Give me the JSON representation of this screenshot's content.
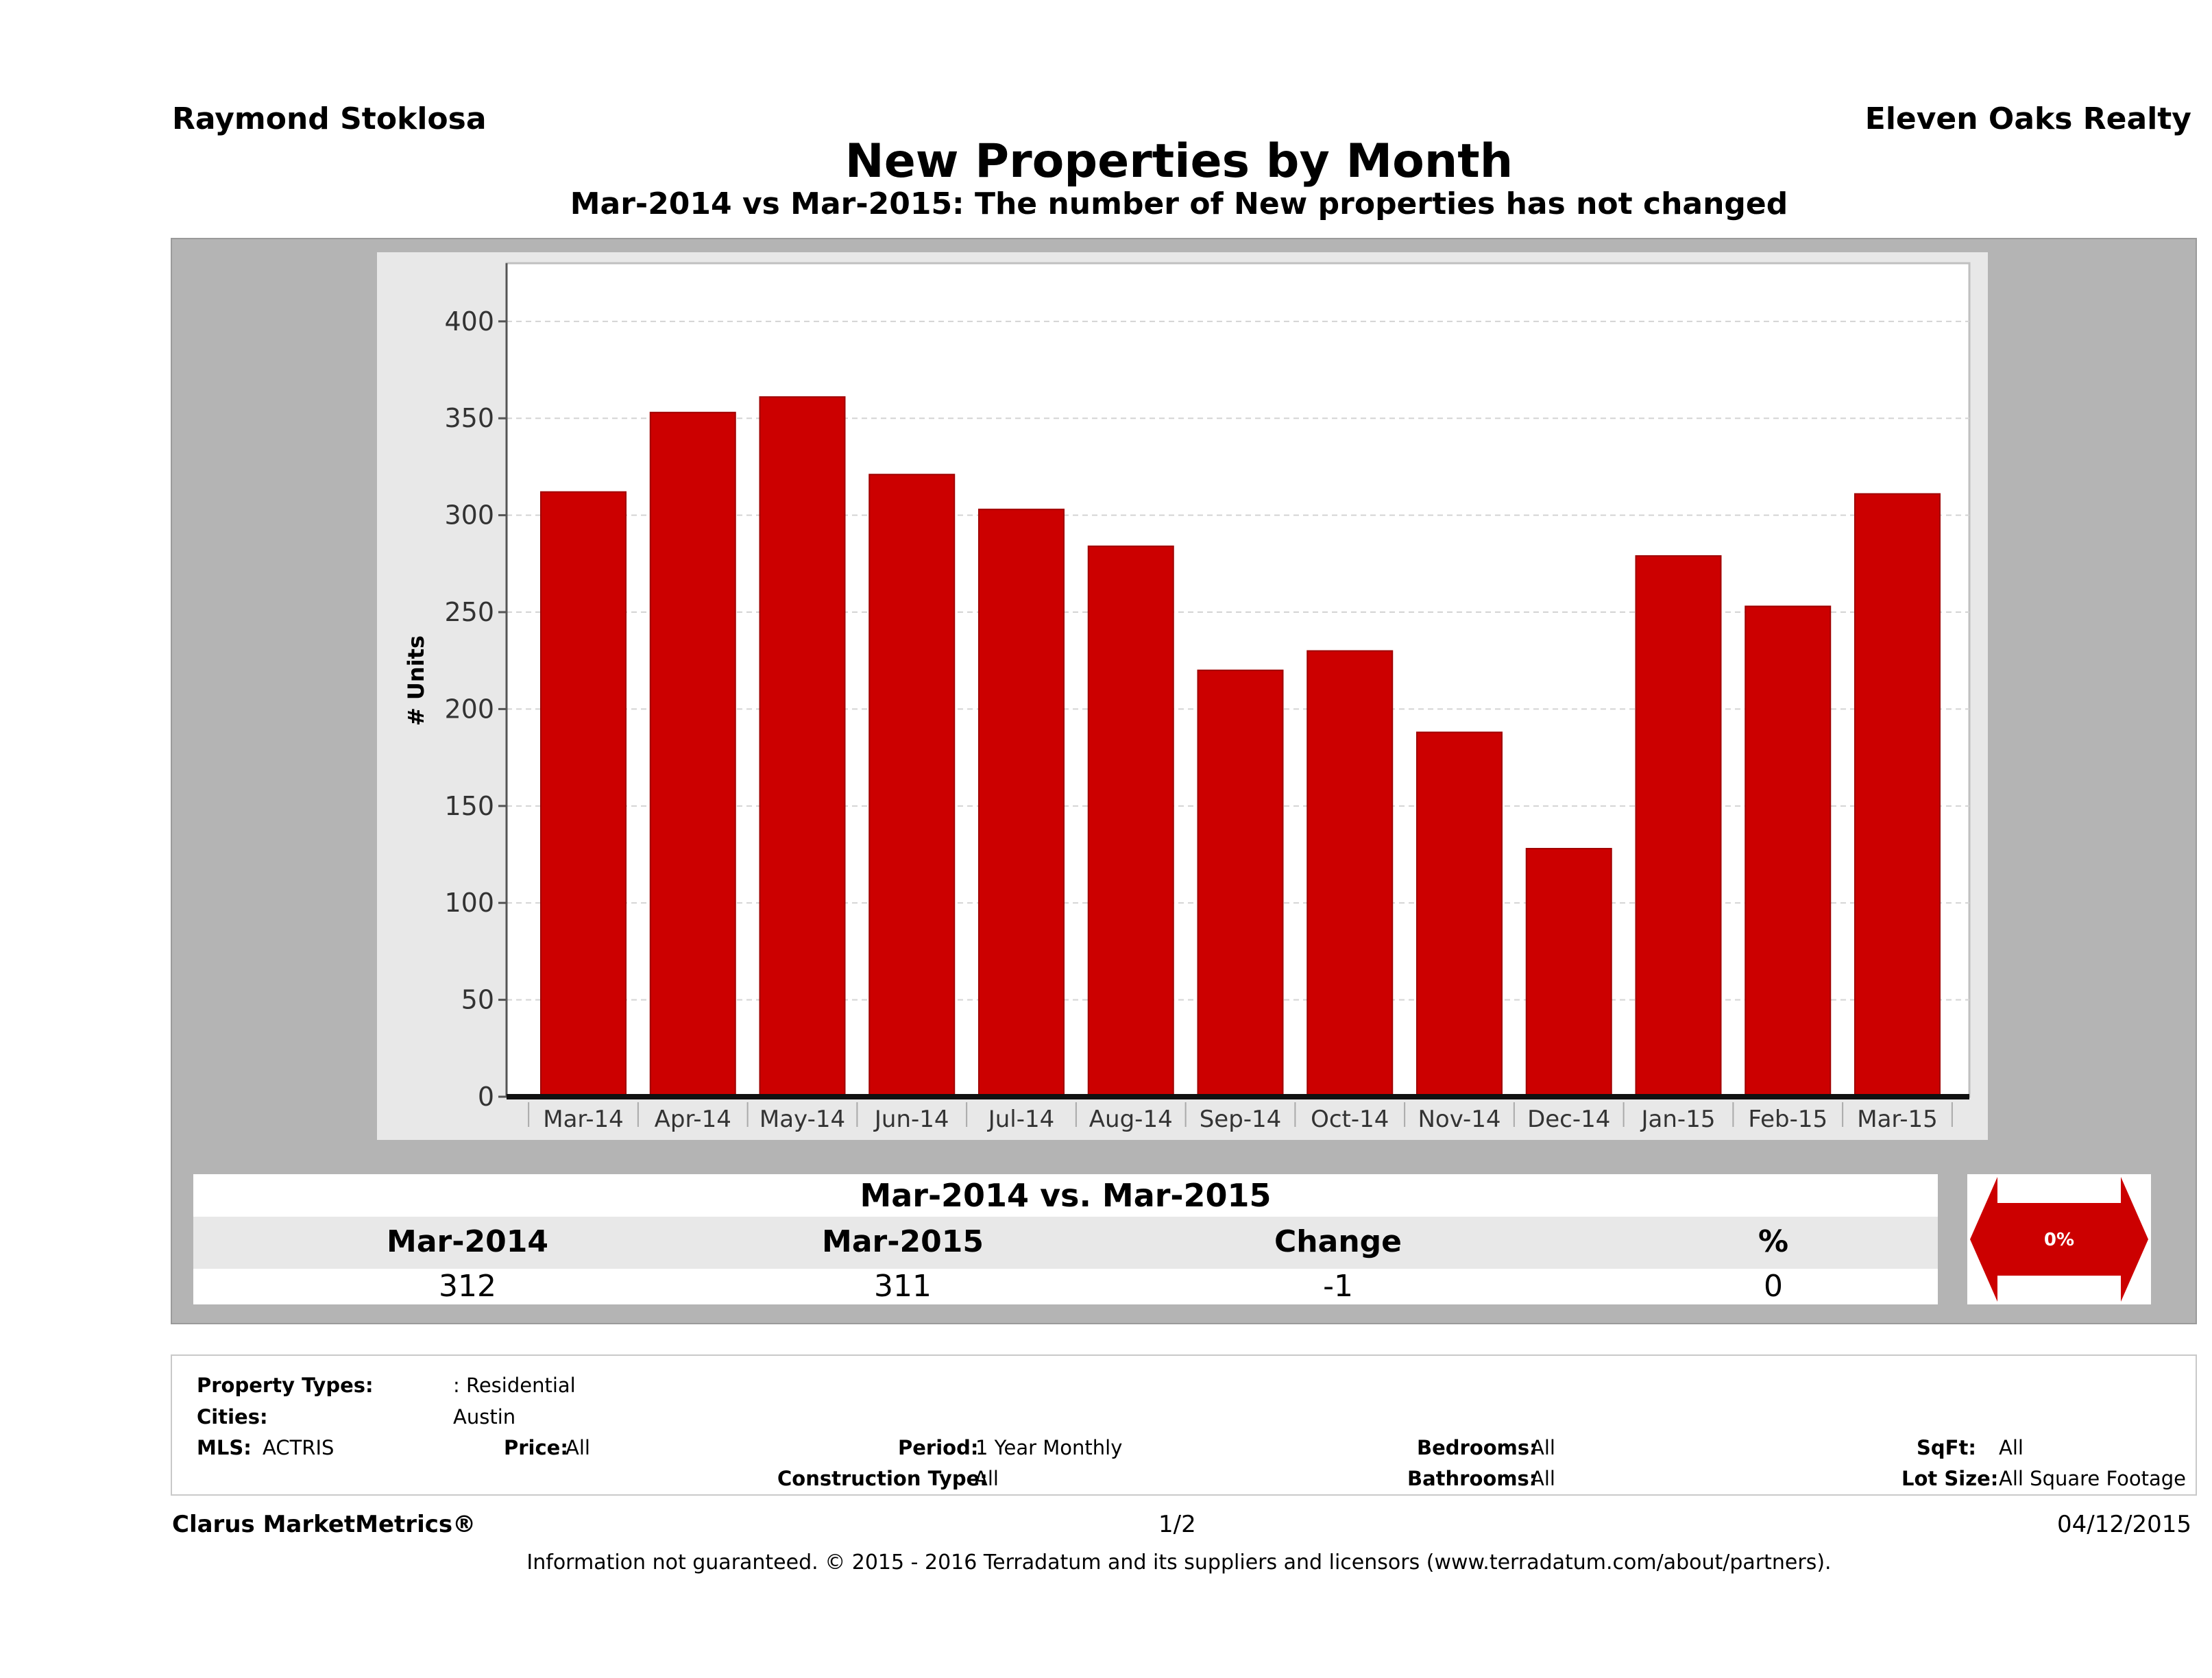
{
  "header": {
    "agent_name": "Raymond Stoklosa",
    "company_name": "Eleven Oaks Realty"
  },
  "chart_data": {
    "type": "bar",
    "title": "New Properties by Month",
    "subtitle": "Mar-2014 vs Mar-2015: The number of New  properties has not changed",
    "xlabel": "",
    "ylabel": "# Units",
    "ylim": [
      0,
      430
    ],
    "yticks": [
      0,
      50,
      100,
      150,
      200,
      250,
      300,
      350,
      400
    ],
    "grid": true,
    "legend": "none",
    "bar_color": "#cc0000",
    "categories": [
      "Mar-14",
      "Apr-14",
      "May-14",
      "Jun-14",
      "Jul-14",
      "Aug-14",
      "Sep-14",
      "Oct-14",
      "Nov-14",
      "Dec-14",
      "Jan-15",
      "Feb-15",
      "Mar-15"
    ],
    "values": [
      312,
      353,
      361,
      321,
      303,
      284,
      220,
      230,
      188,
      128,
      279,
      253,
      311
    ]
  },
  "summary": {
    "title": "Mar-2014 vs. Mar-2015",
    "headers": [
      "Mar-2014",
      "Mar-2015",
      "Change",
      "%"
    ],
    "values": [
      "312",
      "311",
      "-1",
      "0"
    ],
    "indicator": "0%",
    "indicator_color": "#cc0000"
  },
  "filters": {
    "property_types_label": "Property Types:",
    "property_types_value": ": Residential",
    "cities_label": "Cities:",
    "cities_value": "Austin",
    "mls_label": "MLS:",
    "mls_value": "ACTRIS",
    "price_label": "Price:",
    "price_value": "All",
    "period_label": "Period:",
    "period_value": "1 Year Monthly",
    "construction_label": "Construction Type:",
    "construction_value": "All",
    "bedrooms_label": "Bedrooms:",
    "bedrooms_value": "All",
    "bathrooms_label": "Bathrooms:",
    "bathrooms_value": "All",
    "sqft_label": "SqFt:",
    "sqft_value": "All",
    "lotsize_label": "Lot Size:",
    "lotsize_value": "All Square Footage"
  },
  "footer": {
    "brand": "Clarus MarketMetrics®",
    "page": "1/2",
    "date": "04/12/2015",
    "disclaimer": "Information not guaranteed. © 2015 - 2016 Terradatum and its suppliers and licensors (www.terradatum.com/about/partners)."
  }
}
